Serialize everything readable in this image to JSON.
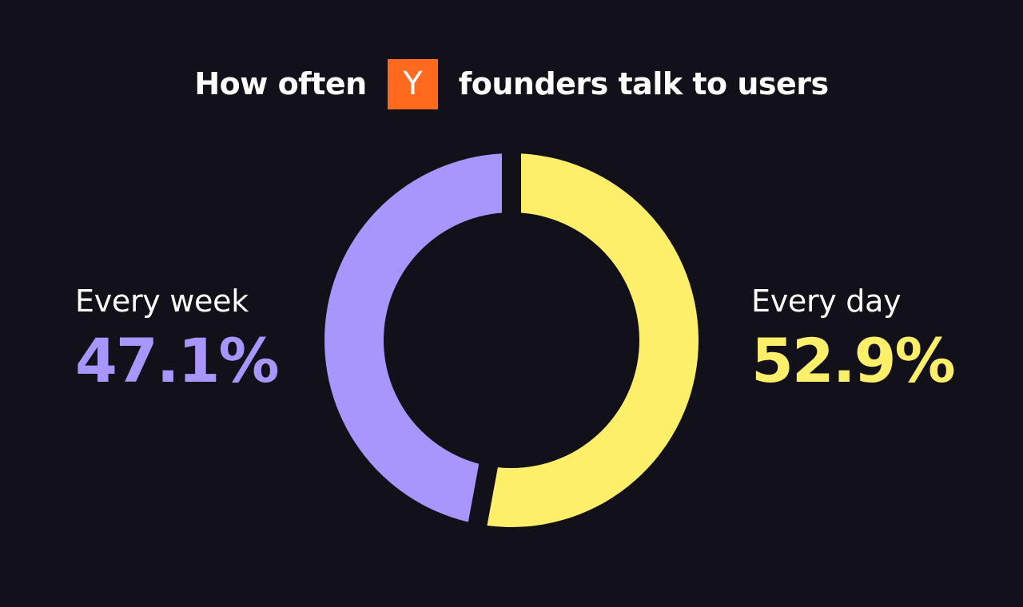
{
  "header": {
    "title_before": "How often",
    "logo_letter": "Y",
    "title_after": "founders talk to users",
    "logo_color": "#ff6a1f"
  },
  "chart_data": {
    "type": "pie",
    "donut": true,
    "title": "How often Y founders talk to users",
    "slices": [
      {
        "label": "Every day",
        "value": 52.9,
        "display": "52.9%",
        "color": "#fdef69"
      },
      {
        "label": "Every week",
        "value": 47.1,
        "display": "47.1%",
        "color": "#a896fd"
      }
    ],
    "legend_placement": "sides"
  },
  "colors": {
    "background": "#12111a",
    "text": "#ffffff"
  }
}
